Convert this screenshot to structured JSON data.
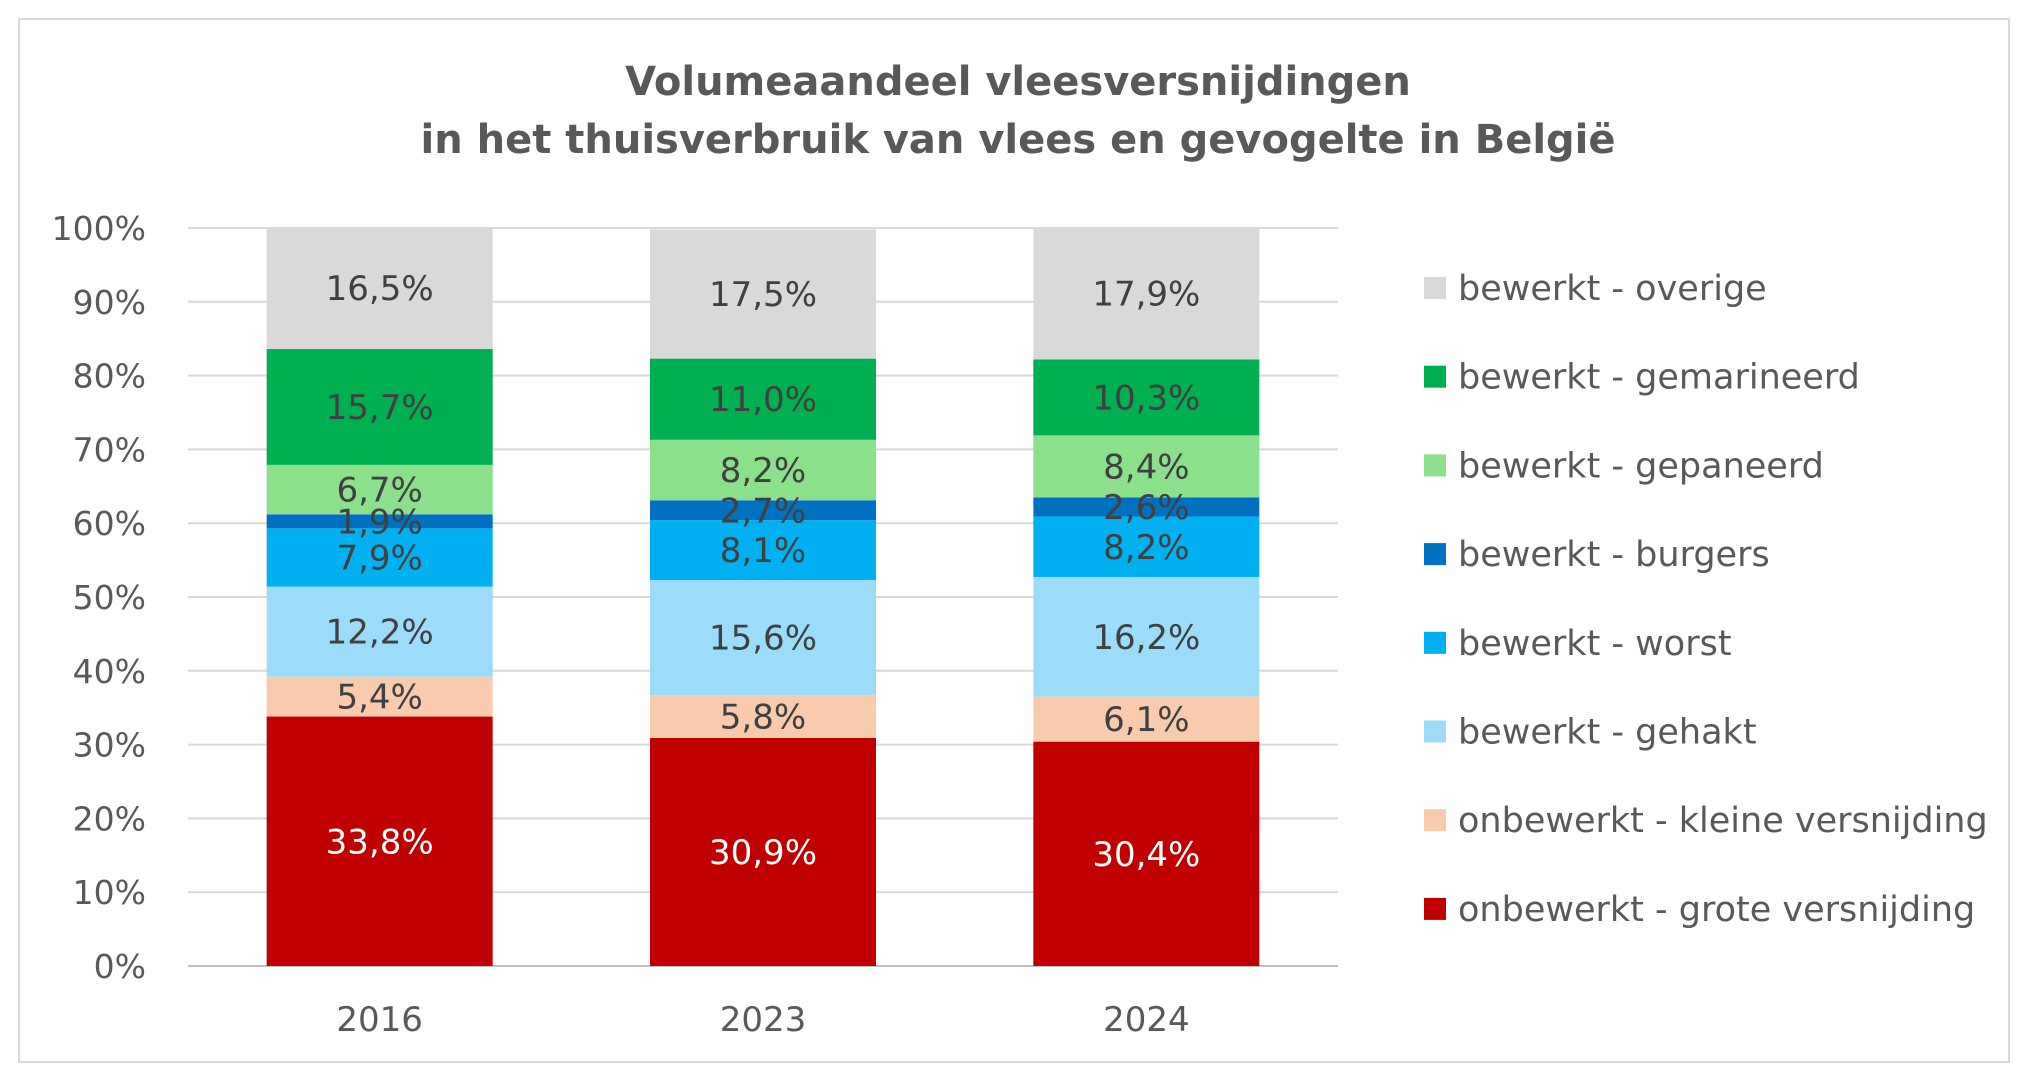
{
  "chart_data": {
    "type": "bar",
    "stacked": true,
    "percent_stacked": true,
    "title": "Volumeaandeel vleesversnijdingen",
    "subtitle": "in het thuisverbruik van vlees en gevogelte in België",
    "xlabel": "",
    "ylabel": "",
    "ylim": [
      0,
      100
    ],
    "yticks": [
      "0%",
      "10%",
      "20%",
      "30%",
      "40%",
      "50%",
      "60%",
      "70%",
      "80%",
      "90%",
      "100%"
    ],
    "grid": true,
    "legend_position": "right",
    "categories": [
      "2016",
      "2023",
      "2024"
    ],
    "series": [
      {
        "name": "onbewerkt - grote versnijding",
        "color": "#C00000",
        "label_color": "#ffffff",
        "values": [
          33.8,
          30.9,
          30.4
        ],
        "labels": [
          "33,8%",
          "30,9%",
          "30,4%"
        ]
      },
      {
        "name": "onbewerkt - kleine versnijding",
        "color": "#F8CBAD",
        "label_color": "#404040",
        "values": [
          5.4,
          5.8,
          6.1
        ],
        "labels": [
          "5,4%",
          "5,8%",
          "6,1%"
        ]
      },
      {
        "name": "bewerkt - gehakt",
        "color": "#9DDCF9",
        "label_color": "#404040",
        "values": [
          12.2,
          15.6,
          16.2
        ],
        "labels": [
          "12,2%",
          "15,6%",
          "16,2%"
        ]
      },
      {
        "name": "bewerkt - worst",
        "color": "#00B0F0",
        "label_color": "#404040",
        "values": [
          7.9,
          8.1,
          8.2
        ],
        "labels": [
          "7,9%",
          "8,1%",
          "8,2%"
        ]
      },
      {
        "name": "bewerkt - burgers",
        "color": "#0070C0",
        "label_color": "#404040",
        "values": [
          1.9,
          2.7,
          2.6
        ],
        "labels": [
          "1,9%",
          "2,7%",
          "2,6%"
        ]
      },
      {
        "name": "bewerkt - gepaneerd",
        "color": "#8CE08C",
        "label_color": "#404040",
        "values": [
          6.7,
          8.2,
          8.4
        ],
        "labels": [
          "6,7%",
          "8,2%",
          "8,4%"
        ]
      },
      {
        "name": "bewerkt - gemarineerd",
        "color": "#00B050",
        "label_color": "#404040",
        "values": [
          15.7,
          11.0,
          10.3
        ],
        "labels": [
          "15,7%",
          "11,0%",
          "10,3%"
        ]
      },
      {
        "name": "bewerkt - overige",
        "color": "#D9D9D9",
        "label_color": "#404040",
        "values": [
          16.5,
          17.5,
          17.9
        ],
        "labels": [
          "16,5%",
          "17,5%",
          "17,9%"
        ]
      }
    ]
  }
}
